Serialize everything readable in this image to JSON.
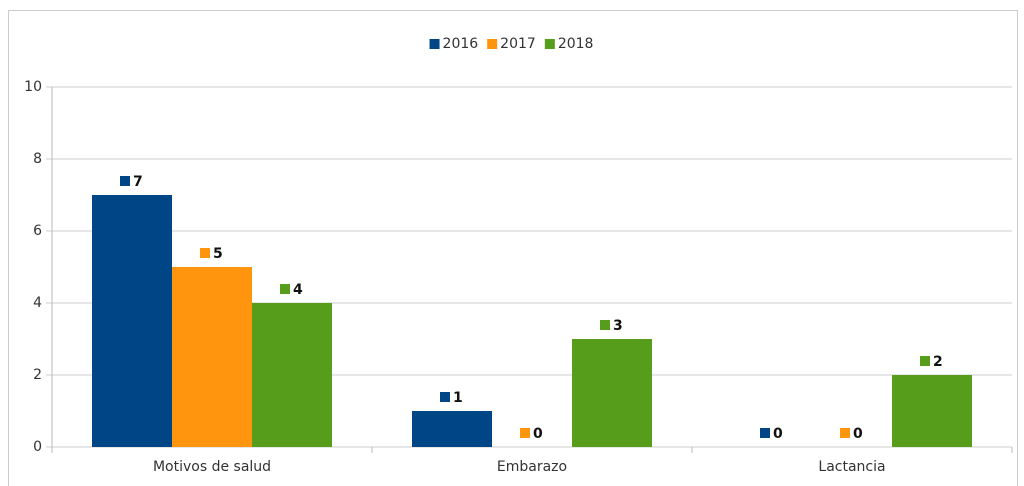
{
  "chart_data": {
    "type": "bar",
    "categories": [
      "Motivos de salud",
      "Embarazo",
      "Lactancia"
    ],
    "series": [
      {
        "name": "2016",
        "color": "#004586",
        "values": [
          7,
          1,
          0
        ]
      },
      {
        "name": "2017",
        "color": "#ff950e",
        "values": [
          5,
          0,
          0
        ]
      },
      {
        "name": "2018",
        "color": "#579d1c",
        "values": [
          4,
          3,
          2
        ]
      }
    ],
    "ylim": [
      0,
      10
    ],
    "yticks": [
      0,
      2,
      4,
      6,
      8,
      10
    ],
    "grid": true,
    "legend": "top"
  }
}
